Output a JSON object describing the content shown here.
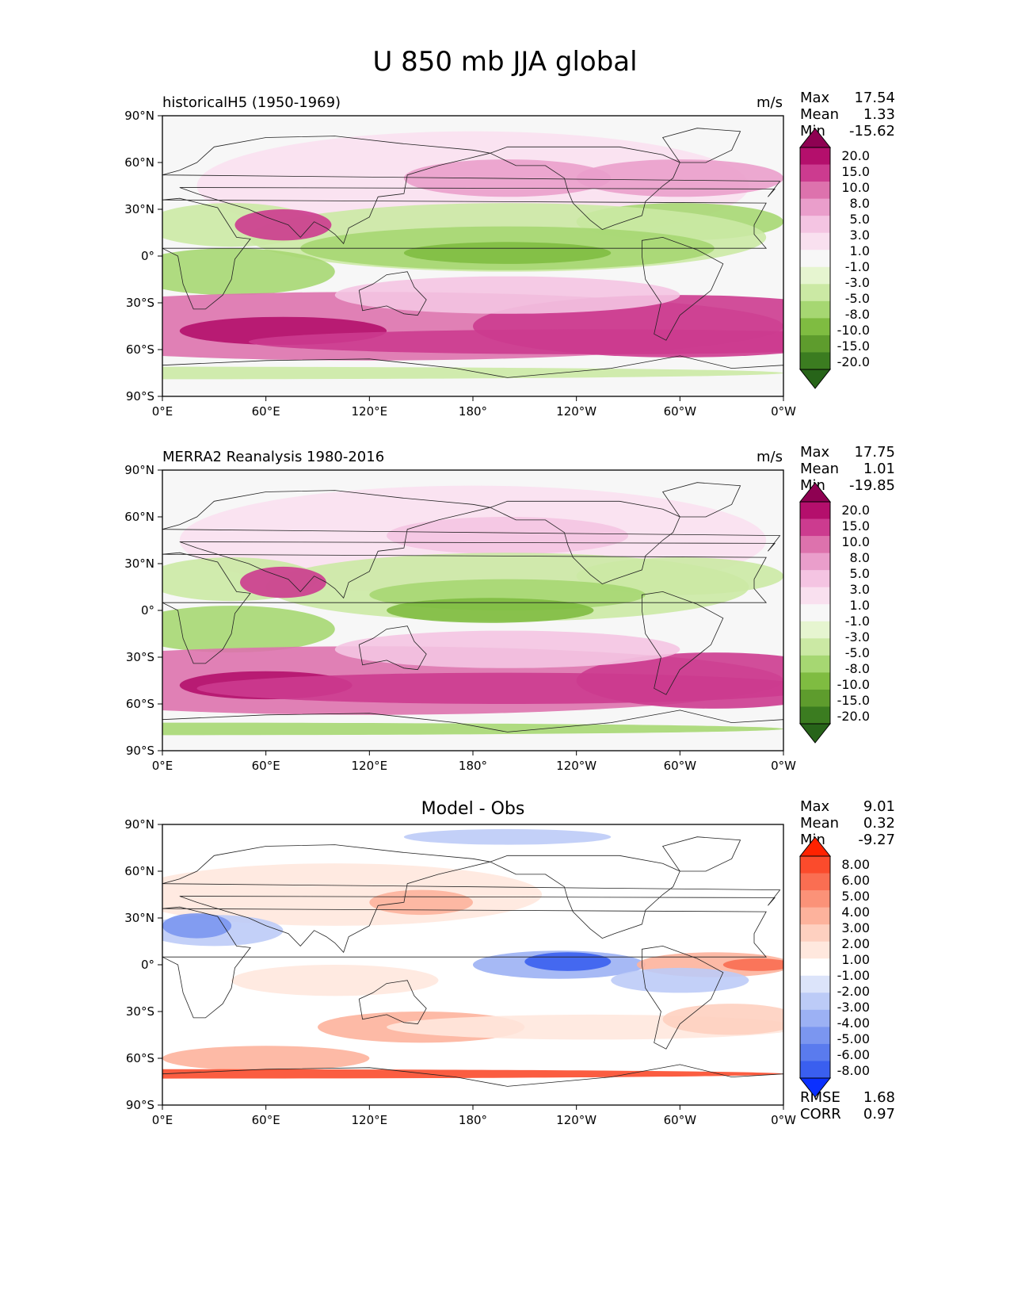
{
  "figure": {
    "title": "U 850 mb JJA global"
  },
  "chart_data": [
    {
      "type": "heatmap",
      "title": "historicalH5 (1950-1969)",
      "units": "m/s",
      "xlabel": "",
      "ylabel": "",
      "x_tick_labels": [
        "0°E",
        "60°E",
        "120°E",
        "180°",
        "120°W",
        "60°W",
        "0°W"
      ],
      "y_tick_labels": [
        "90°N",
        "60°N",
        "30°N",
        "0°",
        "30°S",
        "60°S",
        "90°S"
      ],
      "stats": {
        "Max": "17.54",
        "Mean": "1.33",
        "Min": "-15.62"
      },
      "colorbar": {
        "levels": [
          "20.0",
          "15.0",
          "10.0",
          "8.0",
          "5.0",
          "3.0",
          "1.0",
          "-1.0",
          "-3.0",
          "-5.0",
          "-8.0",
          "-10.0",
          "-15.0",
          "-20.0"
        ],
        "colors": [
          "#8e0152",
          "#b40f6c",
          "#cc3b8f",
          "#dd72ad",
          "#ea9ecb",
          "#f4c4e2",
          "#f9e0ef",
          "#f7f7f7",
          "#e6f5d0",
          "#cbe9a4",
          "#a6d772",
          "#7fbc41",
          "#5e9c2d",
          "#3b7c20",
          "#276419"
        ]
      }
    },
    {
      "type": "heatmap",
      "title": "MERRA2 Reanalysis 1980-2016",
      "units": "m/s",
      "x_tick_labels": [
        "0°E",
        "60°E",
        "120°E",
        "180°",
        "120°W",
        "60°W",
        "0°W"
      ],
      "y_tick_labels": [
        "90°N",
        "60°N",
        "30°N",
        "0°",
        "30°S",
        "60°S",
        "90°S"
      ],
      "stats": {
        "Max": "17.75",
        "Mean": "1.01",
        "Min": "-19.85"
      },
      "colorbar": {
        "levels": [
          "20.0",
          "15.0",
          "10.0",
          "8.0",
          "5.0",
          "3.0",
          "1.0",
          "-1.0",
          "-3.0",
          "-5.0",
          "-8.0",
          "-10.0",
          "-15.0",
          "-20.0"
        ],
        "colors": [
          "#8e0152",
          "#b40f6c",
          "#cc3b8f",
          "#dd72ad",
          "#ea9ecb",
          "#f4c4e2",
          "#f9e0ef",
          "#f7f7f7",
          "#e6f5d0",
          "#cbe9a4",
          "#a6d772",
          "#7fbc41",
          "#5e9c2d",
          "#3b7c20",
          "#276419"
        ]
      }
    },
    {
      "type": "heatmap",
      "title": "Model - Obs",
      "x_tick_labels": [
        "0°E",
        "60°E",
        "120°E",
        "180°",
        "120°W",
        "60°W",
        "0°W"
      ],
      "y_tick_labels": [
        "90°N",
        "60°N",
        "30°N",
        "0°",
        "30°S",
        "60°S",
        "90°S"
      ],
      "stats": {
        "Max": "9.01",
        "Mean": "0.32",
        "Min": "-9.27"
      },
      "metrics": {
        "RMSE": "1.68",
        "CORR": "0.97"
      },
      "colorbar": {
        "levels": [
          "8.00",
          "6.00",
          "5.00",
          "4.00",
          "3.00",
          "2.00",
          "1.00",
          "-1.00",
          "-2.00",
          "-3.00",
          "-4.00",
          "-5.00",
          "-6.00",
          "-8.00"
        ],
        "colors": [
          "#ff2200",
          "#fb4b2c",
          "#fa6e52",
          "#fb9278",
          "#fdb29c",
          "#fed0c0",
          "#ffe8de",
          "#ffffff",
          "#dce4fa",
          "#bccbf7",
          "#9cb1f4",
          "#7b96f0",
          "#5a7bee",
          "#3a5fef",
          "#0a30ff"
        ]
      }
    }
  ]
}
